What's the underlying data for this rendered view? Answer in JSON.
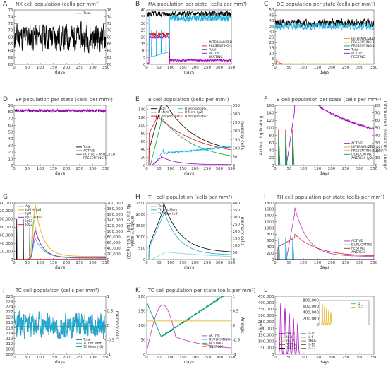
{
  "chart_data": [
    {
      "letter": "A",
      "type": "line",
      "title": "NK cell population (cells per mm³)",
      "xlabel": "days",
      "ylabel": "",
      "ylabel_right": "",
      "xlim": [
        0,
        350
      ],
      "ylim": [
        60,
        76
      ],
      "y2lim": [
        60,
        76
      ],
      "xticks": [
        "0",
        "50",
        "100",
        "150",
        "200",
        "250",
        "300",
        "350"
      ],
      "yticks": [
        "60",
        "62",
        "64",
        "66",
        "68",
        "70",
        "72",
        "74",
        "76"
      ],
      "y2ticks": [
        "60",
        "62",
        "64",
        "66",
        "68",
        "70",
        "72",
        "74",
        "76"
      ],
      "series": [
        {
          "name": "Total",
          "color": "#000000",
          "gen": "noise",
          "base": 68,
          "amp": 10,
          "seed": 11
        }
      ]
    },
    {
      "letter": "B",
      "type": "line",
      "title": "MA population per state (cells per mm³)",
      "xlabel": "days",
      "ylabel": "",
      "ylabel_right": "",
      "xlim": [
        0,
        350
      ],
      "ylim": [
        0,
        40
      ],
      "xticks": [
        "0",
        "50",
        "100",
        "150",
        "200",
        "250",
        "300",
        "350"
      ],
      "yticks": [
        "0",
        "5",
        "10",
        "15",
        "20",
        "25",
        "30",
        "35",
        "40"
      ],
      "series": [
        {
          "name": "INTERNALIZED",
          "color": "#e6a800",
          "gen": "const",
          "base": 0.3
        },
        {
          "name": "PRESENTING-2",
          "color": "#e01010",
          "gen": "plateau",
          "base": 22,
          "amp": 3,
          "start": 10,
          "end": 95,
          "seed": 3
        },
        {
          "name": "Total",
          "color": "#000000",
          "gen": "noise",
          "base": 37,
          "amp": 5,
          "seed": 5
        },
        {
          "name": "ACTIVE",
          "color": "#a000c0",
          "gen": "activeMA",
          "base": 20,
          "amp": 2,
          "seed": 7
        },
        {
          "name": "RESTING",
          "color": "#20b0e0",
          "gen": "restingMA",
          "base": 34,
          "amp": 5,
          "seed": 9
        }
      ]
    },
    {
      "letter": "C",
      "type": "line",
      "title": "DC population per state (cells per mm³)",
      "xlabel": "days",
      "ylabel": "",
      "ylabel_right": "",
      "xlim": [
        0,
        350
      ],
      "ylim": [
        0,
        50
      ],
      "xticks": [
        "0",
        "50",
        "100",
        "150",
        "200",
        "250",
        "300",
        "350"
      ],
      "yticks": [
        "0",
        "5",
        "10",
        "15",
        "20",
        "25",
        "30",
        "35",
        "40",
        "45",
        "50"
      ],
      "series": [
        {
          "name": "INTERNALIZED",
          "color": "#e6a800",
          "gen": "const",
          "base": 0.5
        },
        {
          "name": "PRESENTING-1",
          "color": "#e01010",
          "gen": "decay",
          "base": 4,
          "start": 5
        },
        {
          "name": "PRESENTING-2",
          "color": "#00a060",
          "gen": "const",
          "base": 0.2
        },
        {
          "name": "Total",
          "color": "#000000",
          "gen": "noise",
          "base": 38,
          "amp": 9,
          "seed": 13
        },
        {
          "name": "ACTIVE",
          "color": "#a000c0",
          "gen": "const",
          "base": 0.4
        },
        {
          "name": "RESTING",
          "color": "#20b0e0",
          "gen": "noise",
          "base": 35,
          "amp": 8,
          "seed": 17
        }
      ]
    },
    {
      "letter": "D",
      "type": "line",
      "title": "EP population per state (cells per mm³)",
      "xlabel": "days",
      "ylabel": "",
      "ylabel_right": "",
      "xlim": [
        0,
        350
      ],
      "ylim": [
        0,
        90
      ],
      "xticks": [
        "0",
        "50",
        "100",
        "150",
        "200",
        "250",
        "300",
        "350"
      ],
      "yticks": [
        "0",
        "10",
        "20",
        "30",
        "40",
        "50",
        "60",
        "70",
        "80",
        "90"
      ],
      "series": [
        {
          "name": "Total",
          "color": "#000000",
          "gen": "noise",
          "base": 82,
          "amp": 5,
          "seed": 19
        },
        {
          "name": "ACTIVE",
          "color": "#a000c0",
          "gen": "noise",
          "base": 82,
          "amp": 5,
          "seed": 19
        },
        {
          "name": "ACTIVE + INFECTED",
          "color": "#00a060",
          "gen": "const",
          "base": 0.3
        },
        {
          "name": "PRESENTING-1",
          "color": "#e01010",
          "gen": "const",
          "base": 0.5
        }
      ]
    },
    {
      "letter": "E",
      "type": "line",
      "title": "B cell population (cells per mm³)",
      "xlabel": "days",
      "ylabel": "",
      "ylabel_right": "memory cells",
      "xlim": [
        0,
        350
      ],
      "ylim": [
        0,
        150
      ],
      "y2lim": [
        0,
        350
      ],
      "xticks": [
        "0",
        "50",
        "100",
        "150",
        "200",
        "250",
        "300",
        "350"
      ],
      "yticks": [
        "0",
        "20",
        "40",
        "60",
        "80",
        "100",
        "120",
        "140"
      ],
      "y2ticks": [
        "0",
        "50",
        "100",
        "150",
        "200",
        "250",
        "300",
        "350"
      ],
      "series": [
        {
          "name": "Total",
          "color": "#000000",
          "gen": "bTotal"
        },
        {
          "name": "B Mem",
          "color": "#00a060",
          "gen": "bMem"
        },
        {
          "name": "B isotype IgM",
          "color": "#e01010",
          "gen": "bIgM"
        },
        {
          "name": "B isotype IgG1",
          "color": "#20b0e0",
          "gen": "bIgG1"
        },
        {
          "name": "B Mem (y2)",
          "color": "#a000c0",
          "gen": "bMemy2"
        },
        {
          "name": "B isotype IgG2",
          "color": "#e6a800",
          "gen": "const",
          "base": 1
        }
      ]
    },
    {
      "letter": "F",
      "type": "line",
      "title": "B cell population per state (cells per mm³)",
      "xlabel": "days",
      "ylabel": "Active, duplicating",
      "ylabel_right": "Internalized, presenting, anergic",
      "xlim": [
        0,
        350
      ],
      "ylim": [
        0,
        160
      ],
      "y2lim": [
        0,
        80
      ],
      "xticks": [
        "0",
        "50",
        "100",
        "150",
        "200",
        "250",
        "300",
        "350"
      ],
      "yticks": [
        "0",
        "20",
        "40",
        "60",
        "80",
        "100",
        "120",
        "140",
        "160"
      ],
      "y2ticks": [
        "0",
        "10",
        "20",
        "30",
        "40",
        "50",
        "60",
        "70",
        "80"
      ],
      "series": [
        {
          "name": "ACTIVE",
          "color": "#a000c0",
          "gen": "fActive"
        },
        {
          "name": "INTERNALIZED (y2)",
          "color": "#e6a800",
          "gen": "const",
          "base": 0.5
        },
        {
          "name": "PRESENTING-2 (y2)",
          "color": "#e01010",
          "gen": "spikes",
          "base": 95,
          "start": 10
        },
        {
          "name": "DUPLICATING",
          "color": "#00a060",
          "gen": "spikes",
          "base": 80,
          "start": 12
        },
        {
          "name": "ANERGIC (y2)",
          "color": "#20b0e0",
          "gen": "const",
          "base": 0.3
        }
      ]
    },
    {
      "letter": "G",
      "type": "line",
      "title": "",
      "xlabel": "days",
      "ylabel": "antigen count per mL",
      "ylabel_right": "Ab titers (IgM, IgG1, IgG2)",
      "ylabel_right2": "arbitrary scale",
      "xlim": [
        0,
        350
      ],
      "ylim": [
        0,
        140000
      ],
      "y2lim": [
        0,
        200000
      ],
      "xticks": [
        "0",
        "50",
        "100",
        "150",
        "200",
        "250",
        "300",
        "350"
      ],
      "yticks": [
        "0",
        "20,000",
        "40,000",
        "60,000",
        "80,000",
        "100,000",
        "120,000",
        "140,000"
      ],
      "y2ticks": [
        "0",
        "20,000",
        "40,000",
        "60,000",
        "80,000",
        "100,000",
        "120,000",
        "140,000",
        "160,000",
        "180,000",
        "200,000"
      ],
      "series": [
        {
          "name": "Ag",
          "color": "#000000",
          "gen": "agSpikes"
        },
        {
          "name": "IgM + IgG",
          "color": "#e6a800",
          "gen": "peak",
          "base": 130000,
          "start": 80,
          "width": 30
        },
        {
          "name": "IgM",
          "color": "#90d070",
          "gen": "peak",
          "base": 95000,
          "start": 75,
          "width": 25
        },
        {
          "name": "IgG1+IgG2",
          "color": "#a000c0",
          "gen": "peak",
          "base": 70000,
          "start": 80,
          "width": 30
        },
        {
          "name": "IgG1",
          "color": "#20b0e0",
          "gen": "peak",
          "base": 50000,
          "start": 80,
          "width": 35
        },
        {
          "name": "IgG2",
          "color": "#e01010",
          "gen": "const",
          "base": 500
        }
      ]
    },
    {
      "letter": "H",
      "type": "line",
      "title": "TH cell population (cells per mm³)",
      "xlabel": "days",
      "ylabel": "",
      "ylabel_right": "memory cells",
      "xlim": [
        0,
        350
      ],
      "ylim": [
        0,
        2500
      ],
      "y2lim": [
        0,
        400
      ],
      "xticks": [
        "0",
        "50",
        "100",
        "150",
        "200",
        "250",
        "300",
        "350"
      ],
      "yticks": [
        "0",
        "500",
        "1000",
        "1500",
        "2000",
        "2500"
      ],
      "y2ticks": [
        "0",
        "50",
        "100",
        "150",
        "200",
        "250",
        "300",
        "350",
        "400"
      ],
      "series": [
        {
          "name": "Total",
          "color": "#000000",
          "gen": "thTotal"
        },
        {
          "name": "TH not Mem",
          "color": "#20b0e0",
          "gen": "thNotMem"
        },
        {
          "name": "TH Mem (y2)",
          "color": "#80d8c0",
          "gen": "thMem"
        }
      ]
    },
    {
      "letter": "I",
      "type": "line",
      "title": "TH cell population per state (cells per mm³)",
      "xlabel": "days",
      "ylabel": "",
      "ylabel_right": "",
      "xlim": [
        0,
        350
      ],
      "ylim": [
        0,
        1800
      ],
      "xticks": [
        "0",
        "50",
        "100",
        "150",
        "200",
        "250",
        "300",
        "350"
      ],
      "yticks": [
        "0",
        "200",
        "400",
        "600",
        "800",
        "1000",
        "1200",
        "1400",
        "1600",
        "1800"
      ],
      "series": [
        {
          "name": "ACTIVE",
          "color": "#c030c0",
          "gen": "iActive"
        },
        {
          "name": "DUPLICATING",
          "color": "#20b0e0",
          "gen": "spikes",
          "base": 700,
          "start": 12
        },
        {
          "name": "RESTING",
          "color": "#c02020",
          "gen": "iResting"
        },
        {
          "name": "ANERGIC",
          "color": "#000000",
          "gen": "const",
          "base": 3
        }
      ]
    },
    {
      "letter": "J",
      "type": "line",
      "title": "TC cell population (cells per mm³)",
      "xlabel": "days",
      "ylabel": "",
      "ylabel_right": "memory cells",
      "xlim": [
        0,
        350
      ],
      "ylim": [
        206,
        228
      ],
      "y2lim": [
        -1,
        1
      ],
      "xticks": [
        "0",
        "50",
        "100",
        "150",
        "200",
        "250",
        "300",
        "350"
      ],
      "yticks": [
        "206",
        "208",
        "210",
        "212",
        "214",
        "216",
        "218",
        "220",
        "222",
        "224",
        "226",
        "228"
      ],
      "y2ticks": [
        "-1",
        "-0.5",
        "0",
        "0.5",
        "1"
      ],
      "series": [
        {
          "name": "Total",
          "color": "#000000",
          "gen": "noise",
          "base": 217,
          "amp": 12,
          "seed": 23
        },
        {
          "name": "TC not Mem",
          "color": "#20b0e0",
          "gen": "noise",
          "base": 217,
          "amp": 12,
          "seed": 23
        },
        {
          "name": "TC Mem (y2)",
          "color": "#00a060",
          "gen": "const",
          "base": 216.5
        }
      ]
    },
    {
      "letter": "K",
      "type": "line",
      "title": "TC cell population per state (cells per mm³)",
      "xlabel": "days",
      "ylabel": "",
      "ylabel_right": "Anergic",
      "xlim": [
        0,
        350
      ],
      "ylim": [
        0,
        200
      ],
      "y2lim": [
        -1,
        1
      ],
      "xticks": [
        "0",
        "50",
        "100",
        "150",
        "200",
        "250",
        "300",
        "350"
      ],
      "yticks": [
        "0",
        "50",
        "100",
        "150",
        "200"
      ],
      "y2ticks": [
        "-1",
        "-0.5",
        "0",
        "0.5",
        "1"
      ],
      "series": [
        {
          "name": "ACTIVE",
          "color": "#c030c0",
          "gen": "kActive"
        },
        {
          "name": "DUPLICATING",
          "color": "#20b0e0",
          "gen": "kResting"
        },
        {
          "name": "RESTING",
          "color": "#00a060",
          "gen": "kResting"
        },
        {
          "name": "ANERGIC",
          "color": "#e6a800",
          "gen": "const",
          "base": 115
        }
      ]
    },
    {
      "letter": "L",
      "type": "line",
      "title": "",
      "xlabel": "days",
      "ylabel": "ng/mL",
      "ylabel_right": "",
      "xlim": [
        0,
        350
      ],
      "ylim": [
        0,
        450000
      ],
      "xticks": [
        "0",
        "50",
        "100",
        "150",
        "200",
        "250",
        "300",
        "350"
      ],
      "yticks": [
        "0",
        "50,000",
        "100,000",
        "150,000",
        "200,000",
        "250,000",
        "300,000",
        "350,000",
        "400,000",
        "450,000"
      ],
      "inset": {
        "ylim": [
          0,
          800000
        ],
        "yticks": [
          "0",
          "100,000",
          "200,000",
          "300,000",
          "400,000",
          "500,000",
          "600,000",
          "700,000",
          "800,000"
        ],
        "series": [
          {
            "name": "D",
            "color": "#20b0e0",
            "gen": "const",
            "base": 0
          },
          {
            "name": "IL-2",
            "color": "#e6a800",
            "gen": "cyt",
            "base": 700000
          }
        ]
      },
      "series": [
        {
          "name": "IFN-g",
          "color": "#a000c0",
          "gen": "cyt",
          "base": 400000
        },
        {
          "name": "IL-4",
          "color": "#e6a800",
          "gen": "const",
          "base": 1000
        },
        {
          "name": "IL-12",
          "color": "#90d070",
          "gen": "const",
          "base": 2000
        },
        {
          "name": "TGF-b",
          "color": "#e01010",
          "gen": "const",
          "base": 1500
        },
        {
          "name": "TNF-a",
          "color": "#000000",
          "gen": "const",
          "base": 500
        },
        {
          "name": "IL-10",
          "color": "#20b0e0",
          "gen": "const",
          "base": 800
        },
        {
          "name": "IL-6",
          "color": "#00a060",
          "gen": "const",
          "base": 1200
        },
        {
          "name": "IFN-b",
          "color": "#c06040",
          "gen": "const",
          "base": 600
        },
        {
          "name": "IL-18",
          "color": "#404040",
          "gen": "const",
          "base": 700
        },
        {
          "name": "IL-23",
          "color": "#808000",
          "gen": "const",
          "base": 900
        }
      ]
    }
  ]
}
